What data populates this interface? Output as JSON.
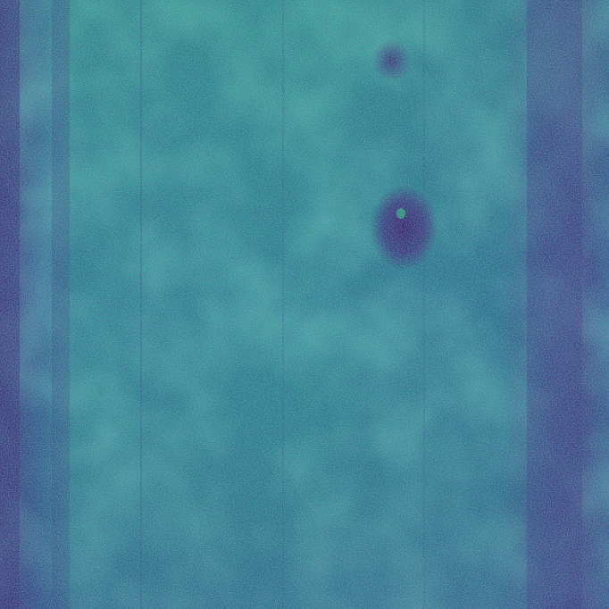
{
  "image": {
    "kind": "false-color intensity map",
    "colormap": "viridis",
    "palette": {
      "dark": "#3b2f7a",
      "mid_dark": "#35508d",
      "mid": "#2b7a8e",
      "mid_light": "#23998a",
      "light": "#35b779",
      "bright": "#8fd744"
    },
    "features": {
      "dark_side_bands": true,
      "dark_spot_count": 2,
      "faint_vertical_lines": true
    }
  }
}
